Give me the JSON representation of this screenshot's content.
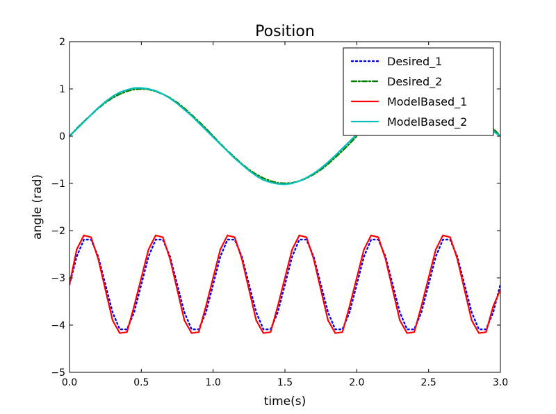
{
  "chart_data": {
    "type": "line",
    "title": "Position",
    "xlabel": "time(s)",
    "ylabel": "angle (rad)",
    "xlim": [
      0.0,
      3.0
    ],
    "ylim": [
      -5,
      2
    ],
    "xticks": [
      0.0,
      0.5,
      1.0,
      1.5,
      2.0,
      2.5,
      3.0
    ],
    "xtick_labels": [
      "0.0",
      "0.5",
      "1.0",
      "1.5",
      "2.0",
      "2.5",
      "3.0"
    ],
    "yticks": [
      2,
      1,
      0,
      -1,
      -2,
      -3,
      -4,
      -5
    ],
    "ytick_labels": [
      "2",
      "1",
      "0",
      "−1",
      "−2",
      "−3",
      "−4",
      "−5"
    ],
    "grid": false,
    "legend_position": "top-right",
    "series": [
      {
        "name": "Desired_1",
        "color": "#0000ff",
        "style": "dotted",
        "x": [
          0.0,
          0.05,
          0.1,
          0.15,
          0.2,
          0.25,
          0.3,
          0.35,
          0.4,
          0.45,
          0.5,
          0.55,
          0.6,
          0.65,
          0.7,
          0.75,
          0.8,
          0.85,
          0.9,
          0.95,
          1.0,
          1.05,
          1.1,
          1.15,
          1.2,
          1.25,
          1.3,
          1.35,
          1.4,
          1.45,
          1.5,
          1.55,
          1.6,
          1.65,
          1.7,
          1.75,
          1.8,
          1.85,
          1.9,
          1.95,
          2.0,
          2.05,
          2.1,
          2.15,
          2.2,
          2.25,
          2.3,
          2.35,
          2.4,
          2.45,
          2.5,
          2.55,
          2.6,
          2.65,
          2.7,
          2.75,
          2.8,
          2.85,
          2.9,
          2.95,
          3.0
        ],
        "y": [
          -3.14,
          -2.55,
          -2.19,
          -2.19,
          -2.55,
          -3.14,
          -3.73,
          -4.09,
          -4.09,
          -3.73,
          -3.14,
          -2.55,
          -2.19,
          -2.19,
          -2.55,
          -3.14,
          -3.73,
          -4.09,
          -4.09,
          -3.73,
          -3.14,
          -2.55,
          -2.19,
          -2.19,
          -2.55,
          -3.14,
          -3.73,
          -4.09,
          -4.09,
          -3.73,
          -3.14,
          -2.55,
          -2.19,
          -2.19,
          -2.55,
          -3.14,
          -3.73,
          -4.09,
          -4.09,
          -3.73,
          -3.14,
          -2.55,
          -2.19,
          -2.19,
          -2.55,
          -3.14,
          -3.73,
          -4.09,
          -4.09,
          -3.73,
          -3.14,
          -2.55,
          -2.19,
          -2.19,
          -2.55,
          -3.14,
          -3.73,
          -4.09,
          -4.09,
          -3.73,
          -3.14
        ]
      },
      {
        "name": "Desired_2",
        "color": "#007f00",
        "style": "dashdot",
        "x": [
          0.0,
          0.05,
          0.1,
          0.15,
          0.2,
          0.25,
          0.3,
          0.35,
          0.4,
          0.45,
          0.5,
          0.55,
          0.6,
          0.65,
          0.7,
          0.75,
          0.8,
          0.85,
          0.9,
          0.95,
          1.0,
          1.05,
          1.1,
          1.15,
          1.2,
          1.25,
          1.3,
          1.35,
          1.4,
          1.45,
          1.5,
          1.55,
          1.6,
          1.65,
          1.7,
          1.75,
          1.8,
          1.85,
          1.9,
          1.95,
          2.0,
          2.05,
          2.1,
          2.15,
          2.2,
          2.25,
          2.3,
          2.35,
          2.4,
          2.45,
          2.5,
          2.55,
          2.6,
          2.65,
          2.7,
          2.75,
          2.8,
          2.85,
          2.9,
          2.95,
          3.0
        ],
        "y": [
          0.0,
          0.16,
          0.31,
          0.45,
          0.59,
          0.71,
          0.81,
          0.89,
          0.95,
          0.99,
          1.0,
          0.99,
          0.95,
          0.89,
          0.81,
          0.71,
          0.59,
          0.45,
          0.31,
          0.16,
          0.0,
          -0.16,
          -0.31,
          -0.45,
          -0.59,
          -0.71,
          -0.81,
          -0.89,
          -0.95,
          -0.99,
          -1.0,
          -0.99,
          -0.95,
          -0.89,
          -0.81,
          -0.71,
          -0.59,
          -0.45,
          -0.31,
          -0.16,
          0.0,
          0.16,
          0.31,
          0.45,
          0.59,
          0.71,
          0.81,
          0.89,
          0.95,
          0.99,
          1.0,
          0.99,
          0.95,
          0.89,
          0.81,
          0.71,
          0.59,
          0.45,
          0.31,
          0.16,
          0.0
        ]
      },
      {
        "name": "ModelBased_1",
        "color": "#ff0000",
        "style": "solid",
        "x": [
          0.0,
          0.05,
          0.1,
          0.15,
          0.2,
          0.25,
          0.3,
          0.35,
          0.4,
          0.45,
          0.5,
          0.55,
          0.6,
          0.65,
          0.7,
          0.75,
          0.8,
          0.85,
          0.9,
          0.95,
          1.0,
          1.05,
          1.1,
          1.15,
          1.2,
          1.25,
          1.3,
          1.35,
          1.4,
          1.45,
          1.5,
          1.55,
          1.6,
          1.65,
          1.7,
          1.75,
          1.8,
          1.85,
          1.9,
          1.95,
          2.0,
          2.05,
          2.1,
          2.15,
          2.2,
          2.25,
          2.3,
          2.35,
          2.4,
          2.45,
          2.5,
          2.55,
          2.6,
          2.65,
          2.7,
          2.75,
          2.8,
          2.85,
          2.9,
          2.95,
          3.0
        ],
        "y": [
          -3.14,
          -2.4,
          -2.1,
          -2.14,
          -2.6,
          -3.25,
          -3.9,
          -4.17,
          -4.15,
          -3.6,
          -3.0,
          -2.4,
          -2.1,
          -2.14,
          -2.6,
          -3.25,
          -3.9,
          -4.17,
          -4.15,
          -3.6,
          -3.0,
          -2.4,
          -2.1,
          -2.14,
          -2.6,
          -3.25,
          -3.9,
          -4.17,
          -4.15,
          -3.6,
          -3.0,
          -2.4,
          -2.1,
          -2.14,
          -2.6,
          -3.25,
          -3.9,
          -4.17,
          -4.15,
          -3.6,
          -3.0,
          -2.4,
          -2.1,
          -2.14,
          -2.6,
          -3.25,
          -3.9,
          -4.17,
          -4.15,
          -3.6,
          -3.0,
          -2.4,
          -2.1,
          -2.14,
          -2.6,
          -3.25,
          -3.9,
          -4.17,
          -4.15,
          -3.6,
          -3.25
        ]
      },
      {
        "name": "ModelBased_2",
        "color": "#00bfbf",
        "style": "solid",
        "x": [
          0.0,
          0.05,
          0.1,
          0.15,
          0.2,
          0.25,
          0.3,
          0.35,
          0.4,
          0.45,
          0.5,
          0.55,
          0.6,
          0.65,
          0.7,
          0.75,
          0.8,
          0.85,
          0.9,
          0.95,
          1.0,
          1.05,
          1.1,
          1.15,
          1.2,
          1.25,
          1.3,
          1.35,
          1.4,
          1.45,
          1.5,
          1.55,
          1.6,
          1.65,
          1.7,
          1.75,
          1.8,
          1.85,
          1.9,
          1.95,
          2.0,
          2.05,
          2.1,
          2.15,
          2.2,
          2.25,
          2.3,
          2.35,
          2.4,
          2.45,
          2.5,
          2.55,
          2.6,
          2.65,
          2.7,
          2.75,
          2.8,
          2.85,
          2.9,
          2.95,
          3.0
        ],
        "y": [
          0.0,
          0.15,
          0.3,
          0.45,
          0.6,
          0.73,
          0.84,
          0.93,
          0.98,
          1.02,
          1.02,
          1.0,
          0.96,
          0.89,
          0.8,
          0.69,
          0.56,
          0.43,
          0.28,
          0.13,
          -0.02,
          -0.17,
          -0.32,
          -0.47,
          -0.6,
          -0.73,
          -0.84,
          -0.93,
          -0.98,
          -1.01,
          -1.02,
          -1.0,
          -0.95,
          -0.88,
          -0.79,
          -0.68,
          -0.55,
          -0.41,
          -0.26,
          -0.11,
          0.04,
          0.19,
          0.34,
          0.48,
          0.62,
          0.74,
          0.85,
          0.93,
          0.99,
          1.02,
          1.02,
          0.99,
          0.95,
          0.88,
          0.79,
          0.67,
          0.54,
          0.4,
          0.25,
          0.1,
          0.0
        ]
      }
    ]
  }
}
